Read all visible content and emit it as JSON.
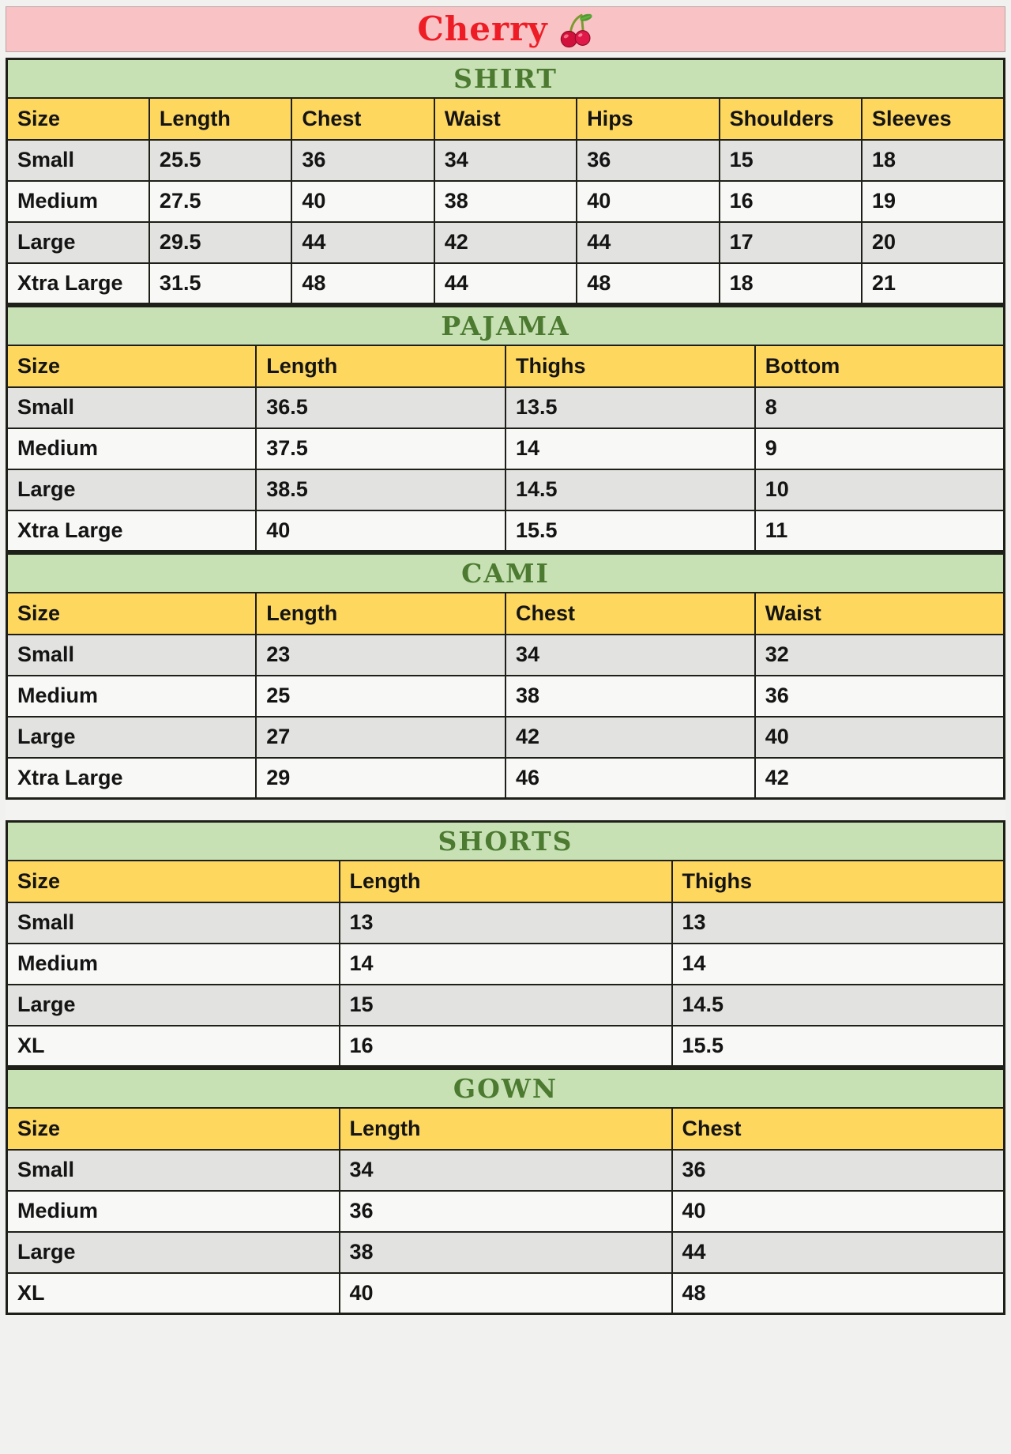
{
  "banner": {
    "title": "Cherry",
    "icon": "cherry-icon",
    "background_color": "#f9c2c4",
    "title_color": "#ee1c25"
  },
  "theme_colors": {
    "section_header_background": "#c7e1b5",
    "section_header_text": "#4c7a30",
    "column_header_background": "#fed75f",
    "row_shaded": "#e2e2e0",
    "row_plain": "#f8f8f6",
    "grid_border": "#1f1f1a"
  },
  "tables": [
    {
      "title": "SHIRT",
      "columns": [
        "Size",
        "Length",
        "Chest",
        "Waist",
        "Hips",
        "Shoulders",
        "Sleeves"
      ],
      "rows": [
        [
          "Small",
          "25.5",
          "36",
          "34",
          "36",
          "15",
          "18"
        ],
        [
          "Medium",
          "27.5",
          "40",
          "38",
          "40",
          "16",
          "19"
        ],
        [
          "Large",
          "29.5",
          "44",
          "42",
          "44",
          "17",
          "20"
        ],
        [
          "Xtra Large",
          "31.5",
          "48",
          "44",
          "48",
          "18",
          "21"
        ]
      ]
    },
    {
      "title": "PAJAMA",
      "columns": [
        "Size",
        "Length",
        "Thighs",
        "Bottom"
      ],
      "rows": [
        [
          "Small",
          "36.5",
          "13.5",
          "8"
        ],
        [
          "Medium",
          "37.5",
          "14",
          "9"
        ],
        [
          "Large",
          "38.5",
          "14.5",
          "10"
        ],
        [
          "Xtra Large",
          "40",
          "15.5",
          "11"
        ]
      ]
    },
    {
      "title": "CAMI",
      "columns": [
        "Size",
        "Length",
        "Chest",
        "Waist"
      ],
      "rows": [
        [
          "Small",
          "23",
          "34",
          "32"
        ],
        [
          "Medium",
          "25",
          "38",
          "36"
        ],
        [
          "Large",
          "27",
          "42",
          "40"
        ],
        [
          "Xtra Large",
          "29",
          "46",
          "42"
        ]
      ]
    },
    {
      "title": "SHORTS",
      "columns": [
        "Size",
        "Length",
        "Thighs"
      ],
      "rows": [
        [
          "Small",
          "13",
          "13"
        ],
        [
          "Medium",
          "14",
          "14"
        ],
        [
          "Large",
          "15",
          "14.5"
        ],
        [
          "XL",
          "16",
          "15.5"
        ]
      ]
    },
    {
      "title": "GOWN",
      "columns": [
        "Size",
        "Length",
        "Chest"
      ],
      "rows": [
        [
          "Small",
          "34",
          "36"
        ],
        [
          "Medium",
          "36",
          "40"
        ],
        [
          "Large",
          "38",
          "44"
        ],
        [
          "XL",
          "40",
          "48"
        ]
      ]
    }
  ]
}
